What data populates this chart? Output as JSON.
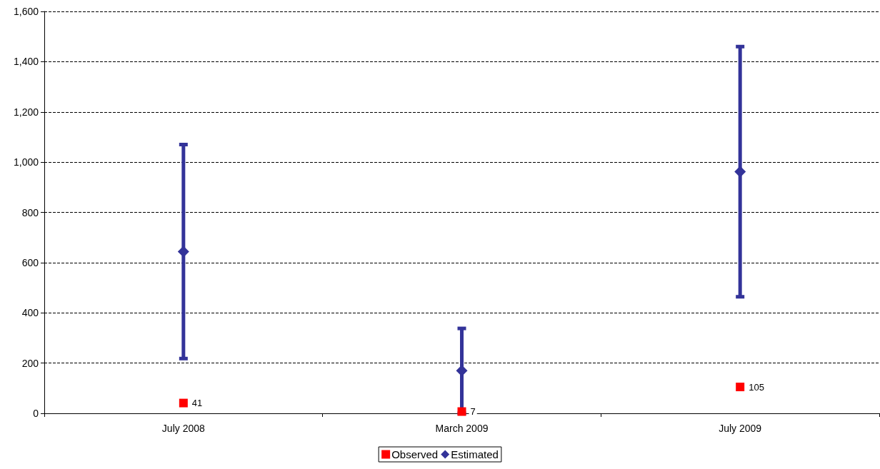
{
  "chart_data": {
    "type": "scatter",
    "categories": [
      "July 2008",
      "March 2009",
      "July 2009"
    ],
    "series": [
      {
        "name": "Observed",
        "color": "#ff0000",
        "marker": "square",
        "values": [
          41,
          7,
          105
        ],
        "value_labels": [
          "41",
          "7",
          "105"
        ]
      },
      {
        "name": "Estimated",
        "color": "#333399",
        "marker": "diamond",
        "values": [
          644,
          170,
          962
        ],
        "errors": [
          426,
          [
            170,
            168
          ],
          498
        ]
      }
    ],
    "ylim": [
      0,
      1600
    ],
    "yticks": [
      {
        "value": 0,
        "label": "0"
      },
      {
        "value": 200,
        "label": "200"
      },
      {
        "value": 400,
        "label": "400"
      },
      {
        "value": 600,
        "label": "600"
      },
      {
        "value": 800,
        "label": "800"
      },
      {
        "value": 1000,
        "label": "1,000"
      },
      {
        "value": 1200,
        "label": "1,200"
      },
      {
        "value": 1400,
        "label": "1,400"
      },
      {
        "value": 1600,
        "label": "1,600"
      }
    ],
    "grid": "y",
    "line_style": "dashed",
    "legend": "bottom"
  }
}
